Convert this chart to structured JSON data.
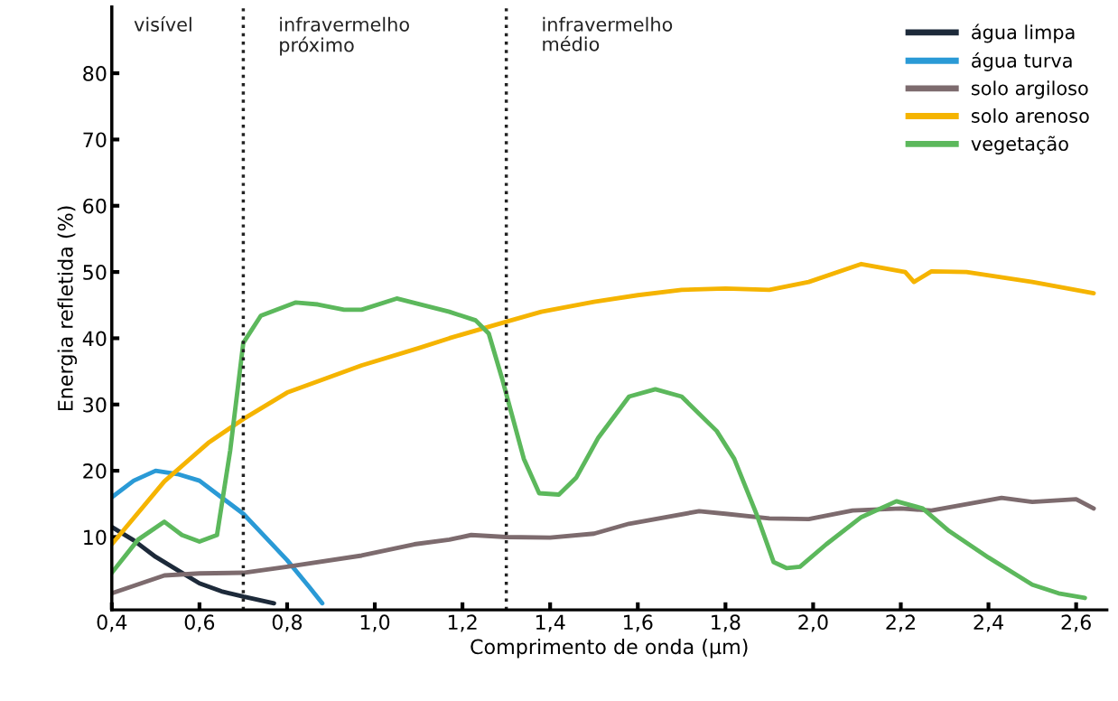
{
  "chart_data": {
    "type": "line",
    "xlabel": "Comprimento de onda (μm)",
    "ylabel": "Energia refletida (%)",
    "xlim": [
      0.4,
      2.67
    ],
    "ylim": [
      -1,
      90
    ],
    "xticks": [
      {
        "value": 0.4,
        "label": "0,4"
      },
      {
        "value": 0.6,
        "label": "0,6"
      },
      {
        "value": 0.8,
        "label": "0,8"
      },
      {
        "value": 1.0,
        "label": "1,0"
      },
      {
        "value": 1.2,
        "label": "1,2"
      },
      {
        "value": 1.4,
        "label": "1,4"
      },
      {
        "value": 1.6,
        "label": "1,6"
      },
      {
        "value": 1.8,
        "label": "1,8"
      },
      {
        "value": 2.0,
        "label": "2,0"
      },
      {
        "value": 2.2,
        "label": "2,2"
      },
      {
        "value": 2.4,
        "label": "2,4"
      },
      {
        "value": 2.6,
        "label": "2,6"
      }
    ],
    "yticks": [
      10,
      20,
      30,
      40,
      50,
      60,
      70,
      80
    ],
    "grid": false,
    "legend": "top right",
    "marker": "none",
    "line_style": "solid",
    "ref_lines": [
      {
        "axis": "x",
        "value": 0.7,
        "line_style": "dotted",
        "color": "#222222"
      },
      {
        "axis": "x",
        "value": 1.3,
        "line_style": "dotted",
        "color": "#222222"
      }
    ],
    "annotations": [
      "visível",
      "infravermelho\npróximo",
      "infravermelho\nmédio"
    ],
    "series": [
      {
        "name": "água limpa",
        "color": "#1d2a3a",
        "x": [
          0.4,
          0.45,
          0.5,
          0.55,
          0.6,
          0.65,
          0.7,
          0.77
        ],
        "values": [
          11.5,
          9.5,
          7,
          5,
          3,
          1.8,
          1,
          0
        ]
      },
      {
        "name": "água turva",
        "color": "#2a9ad6",
        "x": [
          0.4,
          0.45,
          0.5,
          0.55,
          0.6,
          0.65,
          0.7,
          0.75,
          0.8,
          0.85,
          0.88
        ],
        "values": [
          16,
          18.5,
          20,
          19.5,
          18.5,
          16,
          13.5,
          10,
          6.5,
          2.5,
          0
        ]
      },
      {
        "name": "solo argiloso",
        "color": "#7d6b6e",
        "x": [
          0.4,
          0.52,
          0.6,
          0.7,
          0.8,
          0.97,
          1.09,
          1.17,
          1.22,
          1.3,
          1.4,
          1.5,
          1.58,
          1.74,
          1.8,
          1.9,
          1.99,
          2.09,
          2.2,
          2.27,
          2.43,
          2.5,
          2.6,
          2.64
        ],
        "values": [
          1.5,
          4.2,
          4.5,
          4.6,
          5.5,
          7.2,
          8.9,
          9.6,
          10.3,
          10,
          9.9,
          10.5,
          12,
          13.9,
          13.5,
          12.8,
          12.7,
          14,
          14.3,
          14,
          15.9,
          15.3,
          15.7,
          14.3
        ]
      },
      {
        "name": "solo arenoso",
        "color": "#f5b400",
        "x": [
          0.4,
          0.52,
          0.62,
          0.7,
          0.8,
          0.97,
          1.1,
          1.17,
          1.3,
          1.38,
          1.5,
          1.6,
          1.7,
          1.8,
          1.9,
          1.99,
          2.11,
          2.21,
          2.23,
          2.27,
          2.35,
          2.5,
          2.64
        ],
        "values": [
          8.9,
          18.4,
          24.2,
          27.8,
          31.8,
          35.9,
          38.5,
          40,
          42.5,
          44,
          45.5,
          46.5,
          47.3,
          47.5,
          47.3,
          48.5,
          51.2,
          50,
          48.5,
          50.1,
          50,
          48.5,
          46.8
        ]
      },
      {
        "name": "vegetação",
        "color": "#5cb85c",
        "x": [
          0.4,
          0.46,
          0.52,
          0.56,
          0.6,
          0.64,
          0.67,
          0.7,
          0.74,
          0.82,
          0.87,
          0.93,
          0.97,
          1.05,
          1.17,
          1.23,
          1.26,
          1.29,
          1.34,
          1.375,
          1.42,
          1.46,
          1.51,
          1.58,
          1.64,
          1.7,
          1.78,
          1.82,
          1.87,
          1.91,
          1.94,
          1.97,
          2.03,
          2.11,
          2.19,
          2.25,
          2.31,
          2.4,
          2.5,
          2.56,
          2.62
        ],
        "values": [
          4.6,
          9.6,
          12.3,
          10.3,
          9.3,
          10.3,
          23,
          39.3,
          43.4,
          45.4,
          45.1,
          44.3,
          44.3,
          46,
          44,
          42.7,
          40.7,
          34,
          21.8,
          16.6,
          16.4,
          19,
          25,
          31.2,
          32.3,
          31.2,
          26,
          21.8,
          13.6,
          6.2,
          5.3,
          5.5,
          8.9,
          13,
          15.4,
          14.3,
          10.9,
          6.9,
          2.8,
          1.5,
          0.8
        ]
      }
    ]
  }
}
